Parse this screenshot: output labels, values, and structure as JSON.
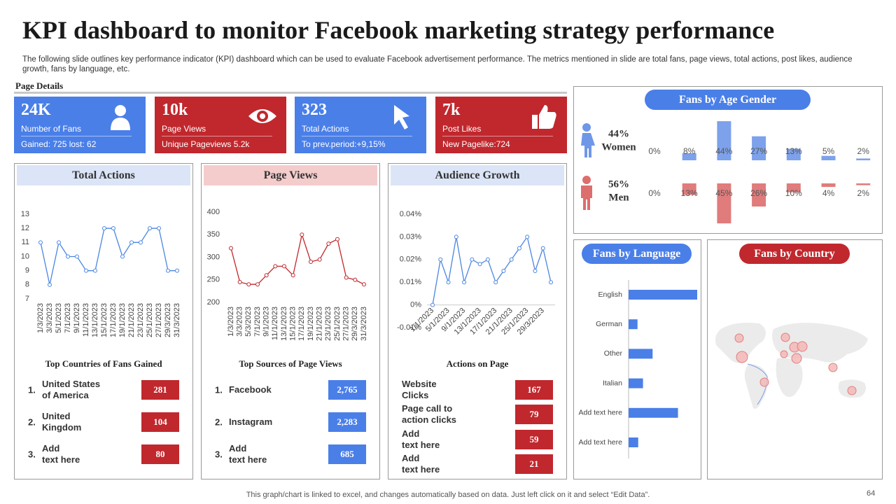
{
  "title": "KPI dashboard to monitor Facebook marketing strategy performance",
  "description": "The following slide outlines key performance indicator (KPI) dashboard which can be used to evaluate Facebook advertisement performance. The metrics mentioned in slide are total fans, page views, total actions, post likes, audience growth, fans by language, etc.",
  "section_label": "Page Details",
  "kpis": [
    {
      "value": "24K",
      "label": "Number of Fans",
      "detail": "Gained: 725 lost: 62",
      "color": "#4a7fe8"
    },
    {
      "value": "10k",
      "label": "Page Views",
      "detail": "Unique Pageviews 5.2k",
      "color": "#c0282d"
    },
    {
      "value": "323",
      "label": "Total Actions",
      "detail": "To prev.period:+9,15%",
      "color": "#4a7fe8"
    },
    {
      "value": "7k",
      "label": "Post Likes",
      "detail": "New Pagelike:724",
      "color": "#c0282d"
    }
  ],
  "chart_data": [
    {
      "type": "line",
      "title": "Total Actions",
      "header_color": "#dbe5f7",
      "color": "#4a86e0",
      "categories": [
        "1/3/2023",
        "3/3/2023",
        "5/1/2023",
        "7/1/2023",
        "9/1/2023",
        "11/1/2023",
        "13/1/2023",
        "15/1/2023",
        "17/1/2023",
        "19/1/2023",
        "21/1/2023",
        "23/1/2023",
        "25/1/2023",
        "27/1/2023",
        "29/3/2023",
        "31/3/2023"
      ],
      "values": [
        11,
        8,
        11,
        10,
        10,
        9,
        9,
        12,
        12,
        10,
        11,
        11,
        12,
        12,
        9,
        9
      ],
      "ylim": [
        7,
        13
      ],
      "yticks": [
        7,
        8,
        9,
        10,
        11,
        12,
        13
      ]
    },
    {
      "type": "line",
      "title": "Page Views",
      "header_color": "#f4cccc",
      "color": "#c0282d",
      "categories": [
        "1/3/2023",
        "3/3/2023",
        "5/3/2023",
        "7/1/2023",
        "9/1/2023",
        "11/1/2023",
        "13/1/2023",
        "15/1/2023",
        "17/1/2023",
        "19/1/2023",
        "21/1/2023",
        "23/1/2023",
        "25/1/2023",
        "27/1/2023",
        "29/3/2023",
        "31/3/2023"
      ],
      "values": [
        320,
        245,
        240,
        240,
        260,
        280,
        280,
        260,
        350,
        290,
        295,
        330,
        340,
        255,
        250,
        240
      ],
      "ylim": [
        200,
        400
      ],
      "yticks": [
        200,
        250,
        300,
        350,
        400
      ]
    },
    {
      "type": "line",
      "title": "Audience Growth",
      "header_color": "#dbe5f7",
      "color": "#4a86e0",
      "categories": [
        "1/1/2023",
        null,
        "5/1/2023",
        null,
        "9/1/2023",
        null,
        "13/1/2023",
        null,
        "17/1/2023",
        null,
        "21/1/2023",
        null,
        "25/1/2023",
        null,
        "29/3/2023",
        null
      ],
      "values": [
        0,
        0.02,
        0.01,
        0.03,
        0.01,
        0.02,
        0.018,
        0.02,
        0.01,
        0.015,
        0.02,
        0.025,
        0.03,
        0.015,
        0.025,
        0.01
      ],
      "ylim": [
        -0.01,
        0.04
      ],
      "yticks": [
        {
          "value": -0.01,
          "label": "-0.01%"
        },
        {
          "value": 0,
          "label": "0%"
        },
        {
          "value": 0.01,
          "label": "0.01%"
        },
        {
          "value": 0.02,
          "label": "0.02%"
        },
        {
          "value": 0.03,
          "label": "0.03%"
        },
        {
          "value": 0.04,
          "label": "0.04%"
        }
      ]
    },
    {
      "type": "gender-bar",
      "title": "Fans by Age Gender",
      "series": [
        {
          "name": "Women",
          "total_label": "44%",
          "color": "#6f97e8",
          "values": [
            0,
            8,
            44,
            27,
            13,
            5,
            2
          ],
          "value_labels": [
            "0%",
            "8%",
            "44%",
            "27%",
            "13%",
            "5%",
            "2%"
          ]
        },
        {
          "name": "Men",
          "total_label": "56%",
          "color": "#dd6e6e",
          "values": [
            0,
            13,
            45,
            26,
            10,
            4,
            2
          ],
          "value_labels": [
            "0%",
            "13%",
            "45%",
            "26%",
            "10%",
            "4%",
            "2%"
          ]
        }
      ]
    },
    {
      "type": "hbar",
      "title": "Fans by Language",
      "color": "#4a7fe8",
      "categories": [
        "English",
        "German",
        "Other",
        "Italian",
        "Add text here",
        "Add text here"
      ],
      "values": [
        100,
        13,
        35,
        21,
        72,
        14
      ],
      "xlim": [
        0,
        100
      ]
    }
  ],
  "tables": [
    {
      "title": "Top Countries of Fans Gained",
      "color": "#c0282d",
      "rows": [
        [
          "1.",
          "United States\nof America",
          "281"
        ],
        [
          "2.",
          "United\nKingdom",
          "104"
        ],
        [
          "3.",
          "Add\ntext here",
          "80"
        ]
      ]
    },
    {
      "title": "Top Sources of Page Views",
      "color": "#4a7fe8",
      "rows": [
        [
          "1.",
          "Facebook",
          "2,765"
        ],
        [
          "2.",
          "Instagram",
          "2,283"
        ],
        [
          "3.",
          "Add\ntext here",
          "685"
        ]
      ]
    },
    {
      "title": "Actions on Page",
      "color": "#c0282d",
      "rows": [
        [
          "Website\nClicks",
          "167"
        ],
        [
          "Page call to\naction clicks",
          "79"
        ],
        [
          "Add\ntext here",
          "59"
        ],
        [
          "Add\ntext here",
          "21"
        ]
      ]
    }
  ],
  "map": {
    "title": "Fans by Country"
  },
  "footer": "This graph/chart is linked to excel,  and changes automatically based on data. Just left click on it and select “Edit Data”.",
  "page_number": "64"
}
